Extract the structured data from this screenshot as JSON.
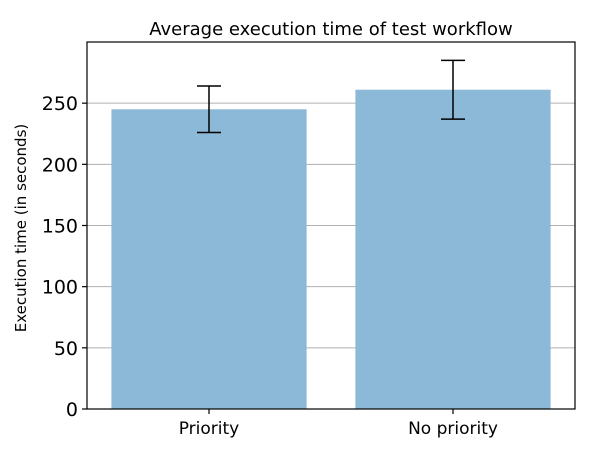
{
  "chart_data": {
    "type": "bar",
    "title": "Average execution time of test workflow",
    "xlabel": "",
    "ylabel": "Execution time (in seconds)",
    "categories": [
      "Priority",
      "No priority"
    ],
    "values": [
      245,
      261
    ],
    "error": [
      19,
      24
    ],
    "ylim": [
      0,
      300
    ],
    "yticks": [
      0,
      50,
      100,
      150,
      200,
      250
    ],
    "ytick_labels": [
      "0",
      "50",
      "100",
      "150",
      "200",
      "250"
    ],
    "grid": "y",
    "legend": "none",
    "colors": {
      "bar": "#8db9d9",
      "grid": "#b0b0b0",
      "errorbar": "#000000",
      "axis": "#000000"
    }
  }
}
